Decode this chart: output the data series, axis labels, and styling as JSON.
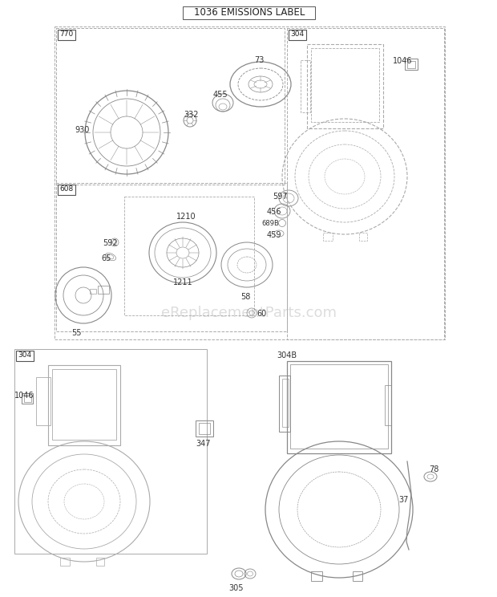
{
  "title": "1036 EMISSIONS LABEL",
  "bg_color": "#ffffff",
  "lc": "#888888",
  "lc_dark": "#555555",
  "lc_med": "#aaaaaa",
  "watermark": "eReplacementParts.com",
  "wm_color": "#dddddd",
  "wm_fs": 13,
  "title_fs": 8.5,
  "label_fs": 7,
  "fig_w": 6.2,
  "fig_h": 7.44,
  "dpi": 100
}
